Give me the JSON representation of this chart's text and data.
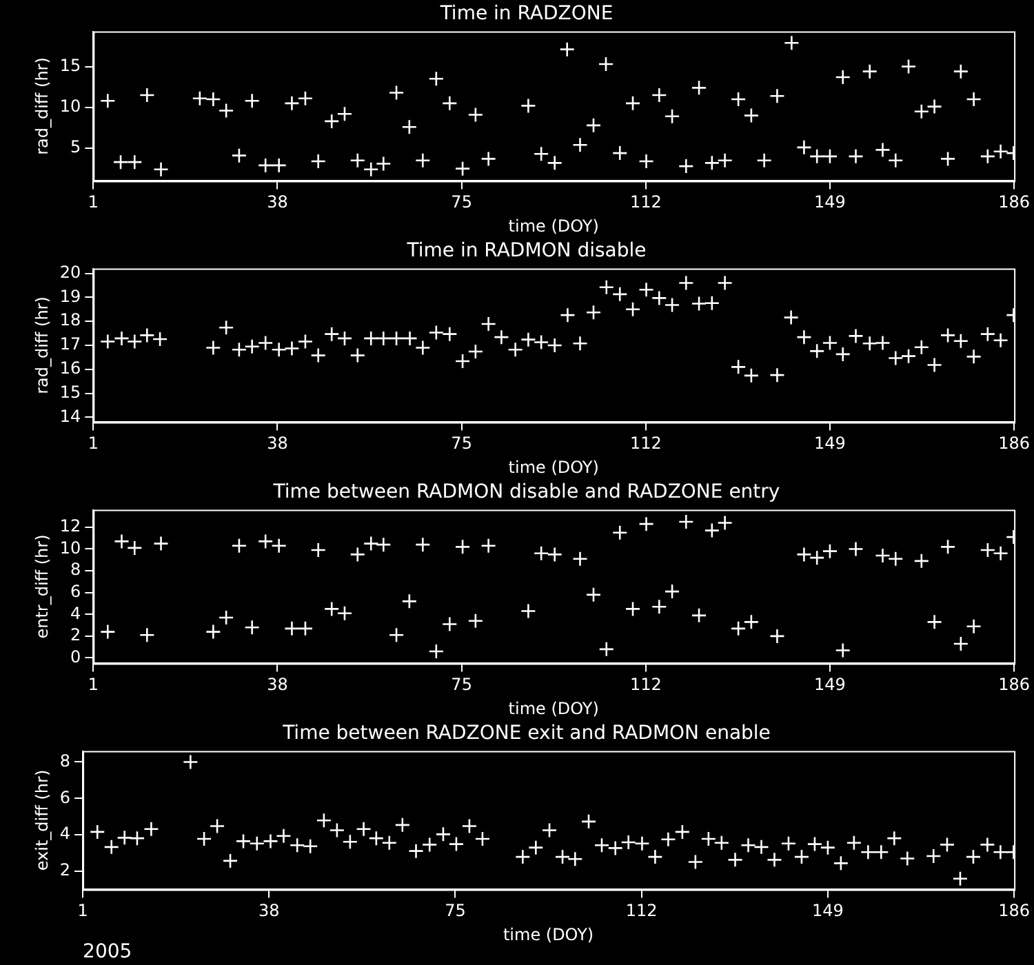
{
  "chart_data": [
    {
      "type": "scatter",
      "title": "Time in RADZONE",
      "xlabel": "time (DOY)",
      "ylabel": "rad_diff (hr)",
      "color": "#ffffff",
      "marker": "cross",
      "xlim": [
        1,
        186
      ],
      "xticks": [
        1,
        38,
        75,
        112,
        149,
        186
      ],
      "ylim": [
        1,
        19.3
      ],
      "yticks": [
        5,
        10,
        15
      ],
      "x": [
        3.9,
        6.5,
        9.3,
        11.8,
        14.6,
        22.4,
        25.1,
        27.7,
        30.3,
        32.9,
        35.6,
        38.3,
        40.9,
        43.6,
        46.2,
        48.9,
        51.5,
        54.1,
        56.8,
        59.3,
        61.9,
        64.5,
        67.2,
        69.9,
        72.6,
        75.2,
        77.8,
        80.4,
        88.4,
        91.0,
        93.7,
        96.2,
        98.8,
        101.5,
        104.0,
        106.8,
        109.4,
        112.1,
        114.7,
        117.3,
        120.1,
        122.7,
        125.3,
        127.9,
        130.6,
        133.2,
        135.8,
        138.4,
        141.3,
        143.8,
        146.4,
        149.0,
        151.6,
        154.2,
        157.0,
        159.6,
        162.2,
        164.8,
        167.4,
        170.0,
        172.7,
        175.3,
        177.9,
        180.7,
        183.3,
        185.9
      ],
      "values": [
        10.8,
        3.3,
        3.3,
        11.5,
        2.4,
        11.1,
        11.0,
        9.6,
        4.1,
        10.8,
        2.9,
        2.9,
        10.5,
        11.1,
        3.4,
        8.3,
        9.2,
        3.5,
        2.4,
        3.1,
        11.8,
        7.6,
        3.5,
        13.5,
        10.5,
        2.5,
        9.1,
        3.7,
        10.2,
        4.3,
        3.2,
        17.1,
        5.4,
        7.8,
        15.3,
        4.4,
        10.5,
        3.4,
        11.5,
        8.9,
        2.8,
        12.4,
        3.2,
        3.5,
        11.0,
        9.0,
        3.5,
        11.4,
        17.9,
        5.1,
        4.0,
        4.0,
        13.7,
        4.0,
        14.4,
        4.8,
        3.5,
        15.0,
        9.5,
        10.1,
        3.7,
        14.4,
        11.0,
        4.0,
        4.6,
        4.4
      ]
    },
    {
      "type": "scatter",
      "title": "Time in RADMON disable",
      "xlabel": "time (DOY)",
      "ylabel": "rad_diff (hr)",
      "color": "#ffffff",
      "marker": "cross",
      "xlim": [
        1,
        186
      ],
      "xticks": [
        1,
        38,
        75,
        112,
        149,
        186
      ],
      "ylim": [
        13.8,
        20.2
      ],
      "yticks": [
        14,
        15,
        16,
        17,
        18,
        19,
        20
      ],
      "x": [
        3.9,
        6.7,
        9.3,
        11.8,
        14.4,
        25.1,
        27.7,
        30.3,
        32.9,
        35.6,
        38.3,
        40.9,
        43.6,
        46.2,
        48.9,
        51.5,
        54.1,
        56.8,
        59.3,
        61.9,
        64.6,
        67.2,
        69.9,
        72.6,
        75.2,
        77.8,
        80.4,
        83.0,
        85.8,
        88.4,
        91.0,
        93.7,
        96.3,
        98.8,
        101.5,
        104.1,
        106.8,
        109.4,
        112.1,
        114.7,
        117.3,
        120.1,
        122.7,
        125.3,
        127.9,
        130.6,
        133.2,
        138.4,
        141.2,
        143.8,
        146.4,
        149.0,
        151.6,
        154.2,
        157.0,
        159.6,
        162.2,
        164.8,
        167.4,
        170.0,
        172.7,
        175.3,
        177.9,
        180.7,
        183.3,
        185.9
      ],
      "values": [
        17.16,
        17.29,
        17.16,
        17.42,
        17.26,
        16.9,
        17.74,
        16.82,
        16.95,
        17.1,
        16.82,
        16.87,
        17.16,
        16.58,
        17.47,
        17.29,
        16.58,
        17.29,
        17.29,
        17.29,
        17.29,
        16.9,
        17.53,
        17.47,
        16.34,
        16.74,
        17.89,
        17.34,
        16.82,
        17.24,
        17.13,
        17.0,
        18.26,
        17.08,
        18.37,
        19.42,
        19.13,
        18.5,
        19.32,
        18.97,
        18.68,
        19.6,
        18.74,
        18.76,
        19.6,
        16.1,
        15.74,
        15.76,
        18.16,
        17.34,
        16.76,
        17.1,
        16.63,
        17.39,
        17.08,
        17.1,
        16.47,
        16.55,
        16.92,
        16.18,
        17.42,
        17.18,
        16.53,
        17.47,
        17.21,
        18.26
      ]
    },
    {
      "type": "scatter",
      "title": "Time between RADMON disable and RADZONE entry",
      "xlabel": "time (DOY)",
      "ylabel": "entr_diff (hr)",
      "color": "#ffffff",
      "marker": "cross",
      "xlim": [
        1,
        186
      ],
      "xticks": [
        1,
        38,
        75,
        112,
        149,
        186
      ],
      "ylim": [
        -0.5,
        13.6
      ],
      "yticks": [
        0,
        2,
        4,
        6,
        8,
        10,
        12
      ],
      "x": [
        3.9,
        6.7,
        9.3,
        11.8,
        14.6,
        25.1,
        27.7,
        30.3,
        32.9,
        35.6,
        38.3,
        40.9,
        43.6,
        46.2,
        48.9,
        51.5,
        54.1,
        56.8,
        59.3,
        61.9,
        64.5,
        67.2,
        69.9,
        72.6,
        75.2,
        77.8,
        80.4,
        88.4,
        91.0,
        93.7,
        98.8,
        101.5,
        104.1,
        106.8,
        109.4,
        112.1,
        114.7,
        117.3,
        120.1,
        122.7,
        125.3,
        127.9,
        130.6,
        133.2,
        138.4,
        143.8,
        146.4,
        149.0,
        151.6,
        154.2,
        159.6,
        162.2,
        167.4,
        170.0,
        172.7,
        175.3,
        177.9,
        180.7,
        183.3,
        185.9
      ],
      "values": [
        2.4,
        10.7,
        10.1,
        2.1,
        10.5,
        2.4,
        3.7,
        10.3,
        2.8,
        10.7,
        10.3,
        2.7,
        2.7,
        9.9,
        4.5,
        4.1,
        9.5,
        10.5,
        10.4,
        2.1,
        5.2,
        10.4,
        0.6,
        3.1,
        10.2,
        3.4,
        10.3,
        4.3,
        9.6,
        9.5,
        9.1,
        5.8,
        0.8,
        11.5,
        4.5,
        12.3,
        4.7,
        6.1,
        12.5,
        3.9,
        11.7,
        12.4,
        2.7,
        3.3,
        2.0,
        9.5,
        9.2,
        9.8,
        0.7,
        10.0,
        9.4,
        9.1,
        8.9,
        3.3,
        10.2,
        1.3,
        2.9,
        9.9,
        9.6,
        11.1
      ]
    },
    {
      "type": "scatter",
      "title": "Time between RADZONE exit and RADMON enable",
      "xlabel": "time (DOY)",
      "ylabel": "exit_diff (hr)",
      "color": "#ffffff",
      "marker": "cross",
      "xlim": [
        1,
        186
      ],
      "xticks": [
        1,
        38,
        75,
        112,
        149,
        186
      ],
      "ylim": [
        1,
        8.6
      ],
      "yticks": [
        2,
        4,
        6,
        8
      ],
      "annotations": [
        "2005"
      ],
      "x": [
        3.9,
        6.7,
        9.3,
        11.8,
        14.6,
        22.4,
        25.1,
        27.7,
        30.3,
        32.9,
        35.6,
        38.3,
        40.9,
        43.6,
        46.2,
        48.9,
        51.5,
        54.1,
        56.8,
        59.3,
        61.9,
        64.5,
        67.2,
        69.9,
        72.6,
        75.2,
        77.8,
        80.4,
        88.4,
        91.0,
        93.7,
        96.3,
        98.8,
        101.5,
        104.1,
        106.8,
        109.4,
        112.1,
        114.7,
        117.3,
        120.1,
        122.7,
        125.3,
        127.9,
        130.6,
        133.2,
        135.8,
        138.4,
        141.2,
        143.8,
        146.4,
        149.0,
        151.6,
        154.2,
        157.0,
        159.6,
        162.2,
        164.8,
        170.0,
        172.7,
        175.3,
        177.9,
        180.7,
        183.3,
        185.9
      ],
      "values": [
        4.16,
        3.33,
        3.84,
        3.81,
        4.32,
        8.0,
        3.78,
        4.48,
        2.57,
        3.65,
        3.52,
        3.65,
        3.94,
        3.43,
        3.37,
        4.79,
        4.25,
        3.62,
        4.32,
        3.81,
        3.56,
        4.54,
        3.11,
        3.46,
        4.03,
        3.49,
        4.48,
        3.78,
        2.79,
        3.3,
        4.25,
        2.79,
        2.67,
        4.73,
        3.43,
        3.27,
        3.59,
        3.52,
        2.79,
        3.75,
        4.16,
        2.51,
        3.78,
        3.56,
        2.63,
        3.43,
        3.33,
        2.63,
        3.52,
        2.79,
        3.49,
        3.3,
        2.44,
        3.56,
        3.05,
        3.05,
        3.81,
        2.7,
        2.83,
        3.46,
        1.59,
        2.79,
        3.46,
        3.05,
        3.05
      ]
    }
  ]
}
